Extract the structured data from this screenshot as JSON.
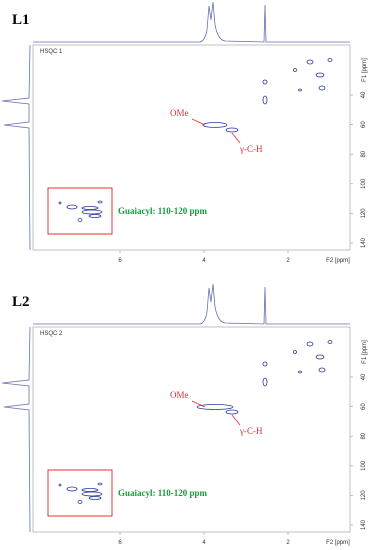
{
  "panels": [
    {
      "label": "L1",
      "experiment": "HSQC 1",
      "annotations": {
        "ome": "OMe",
        "gamma": "γ-C-H",
        "guaiacyl": "Guaiacyl: 110-120 ppm"
      },
      "f1_axis": {
        "title": "F1 [ppm]",
        "ticks": [
          40,
          60,
          80,
          100,
          120,
          140
        ]
      },
      "f2_axis": {
        "title": "F2 [ppm]",
        "ticks": [
          6,
          4,
          2
        ]
      }
    },
    {
      "label": "L2",
      "experiment": "HSQC 2",
      "annotations": {
        "ome": "OMe",
        "gamma": "γ-C-H",
        "guaiacyl": "Guaiacyl: 110-120 ppm"
      },
      "f1_axis": {
        "title": "F1 [ppm]",
        "ticks": [
          40,
          60,
          80,
          100,
          120,
          140
        ]
      },
      "f2_axis": {
        "title": "F2 [ppm]",
        "ticks": [
          6,
          4,
          2
        ]
      }
    }
  ]
}
